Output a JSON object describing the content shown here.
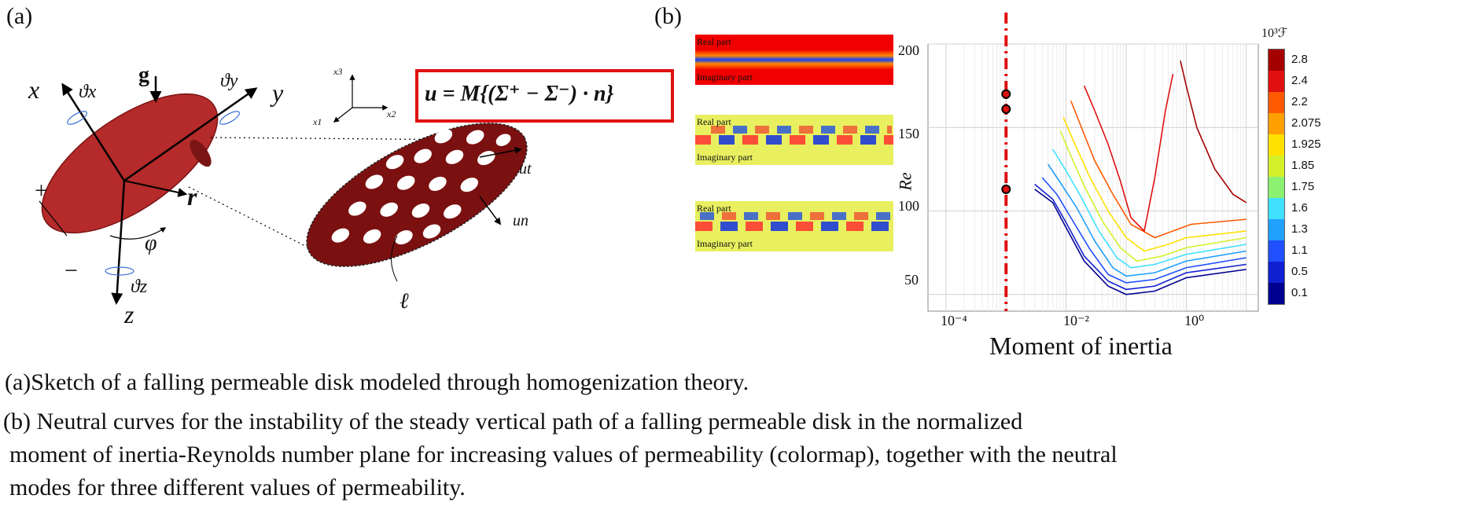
{
  "panel_a": {
    "label": "(a)",
    "equation": "u = M{(Σ⁺ − Σ⁻) · n}",
    "labels": {
      "x": "x",
      "y": "y",
      "z": "z",
      "theta_x": "ϑx",
      "theta_y": "ϑy",
      "theta_z": "ϑz",
      "g": "g",
      "r": "r",
      "phi": "φ",
      "plus": "+",
      "minus": "−",
      "x1": "x1",
      "x2": "x2",
      "x3": "x3",
      "ut": "ut",
      "un": "un",
      "ell": "ℓ"
    }
  },
  "panel_b": {
    "label": "(b)",
    "modes": [
      {
        "real": "Real part",
        "imag": "Imaginary part"
      },
      {
        "real": "Real part",
        "imag": "Imaginary part"
      },
      {
        "real": "Real part",
        "imag": "Imaginary part"
      }
    ]
  },
  "chart_data": {
    "type": "line",
    "xlabel": "Moment of inertia",
    "ylabel": "Re",
    "xscale": "log",
    "xticks": [
      "10⁻⁴",
      "10⁻²",
      "10⁰"
    ],
    "yticks": [
      "50",
      "100",
      "150",
      "200"
    ],
    "ylim": [
      40,
      200
    ],
    "colorbar": {
      "title": "10³ℱ",
      "ticks": [
        "2.8",
        "2.4",
        "2.2",
        "2.075",
        "1.925",
        "1.85",
        "1.75",
        "1.6",
        "1.3",
        "1.1",
        "0.5",
        "0.1"
      ],
      "colors": [
        "#a50000",
        "#e01010",
        "#ff5a00",
        "#ffa000",
        "#ffe000",
        "#d4f02a",
        "#8cf070",
        "#40e0ff",
        "#20a0ff",
        "#2050ff",
        "#1020d0",
        "#000090"
      ]
    },
    "reference_line_x": 0.001,
    "marked_points": [
      {
        "x": 0.001,
        "y": 170
      },
      {
        "x": 0.001,
        "y": 161
      },
      {
        "x": 0.001,
        "y": 113
      }
    ],
    "series": [
      {
        "color": "#000090",
        "x": [
          0.003,
          0.006,
          0.01,
          0.02,
          0.05,
          0.1,
          0.3,
          1,
          10
        ],
        "y": [
          113,
          105,
          90,
          70,
          55,
          50,
          52,
          60,
          65
        ]
      },
      {
        "color": "#1020d0",
        "x": [
          0.003,
          0.006,
          0.01,
          0.02,
          0.05,
          0.1,
          0.3,
          1,
          10
        ],
        "y": [
          116,
          107,
          93,
          73,
          58,
          53,
          55,
          63,
          68
        ]
      },
      {
        "color": "#2050ff",
        "x": [
          0.004,
          0.007,
          0.012,
          0.025,
          0.05,
          0.1,
          0.3,
          1,
          10
        ],
        "y": [
          120,
          110,
          96,
          77,
          62,
          57,
          59,
          66,
          72
        ]
      },
      {
        "color": "#20a0ff",
        "x": [
          0.005,
          0.008,
          0.015,
          0.03,
          0.06,
          0.1,
          0.3,
          1,
          10
        ],
        "y": [
          128,
          117,
          102,
          82,
          66,
          61,
          63,
          70,
          76
        ]
      },
      {
        "color": "#40e0ff",
        "x": [
          0.006,
          0.01,
          0.018,
          0.035,
          0.07,
          0.12,
          0.3,
          1,
          10
        ],
        "y": [
          137,
          124,
          108,
          88,
          72,
          66,
          68,
          74,
          80
        ]
      },
      {
        "color": "#d4f02a",
        "x": [
          0.008,
          0.012,
          0.02,
          0.04,
          0.08,
          0.15,
          0.4,
          1,
          10
        ],
        "y": [
          148,
          133,
          115,
          94,
          78,
          70,
          73,
          78,
          84
        ]
      },
      {
        "color": "#ffe000",
        "x": [
          0.009,
          0.014,
          0.025,
          0.05,
          0.1,
          0.2,
          0.5,
          1,
          10
        ],
        "y": [
          156,
          140,
          120,
          100,
          84,
          76,
          80,
          84,
          88
        ]
      },
      {
        "color": "#ff5a00",
        "x": [
          0.012,
          0.018,
          0.03,
          0.06,
          0.12,
          0.3,
          0.6,
          1.2,
          10
        ],
        "y": [
          166,
          150,
          130,
          110,
          92,
          84,
          88,
          92,
          95
        ]
      },
      {
        "color": "#e01010",
        "x": [
          0.02,
          0.03,
          0.05,
          0.08,
          0.12,
          0.2,
          0.3,
          0.45,
          0.6
        ],
        "y": [
          175,
          160,
          140,
          118,
          96,
          88,
          120,
          160,
          182
        ]
      },
      {
        "color": "#a50000",
        "x": [
          0.8,
          1,
          1.5,
          3,
          6,
          10
        ],
        "y": [
          190,
          175,
          150,
          125,
          110,
          105
        ]
      }
    ]
  },
  "caption": {
    "a": "(a)Sketch of a falling permeable disk modeled through homogenization theory.",
    "b1": "(b) Neutral curves for the instability of the steady vertical path of a falling permeable disk in the normalized",
    "b2": "moment of inertia-Reynolds number plane for increasing values of permeability (colormap), together with the neutral",
    "b3": "modes for three different values of permeability."
  }
}
